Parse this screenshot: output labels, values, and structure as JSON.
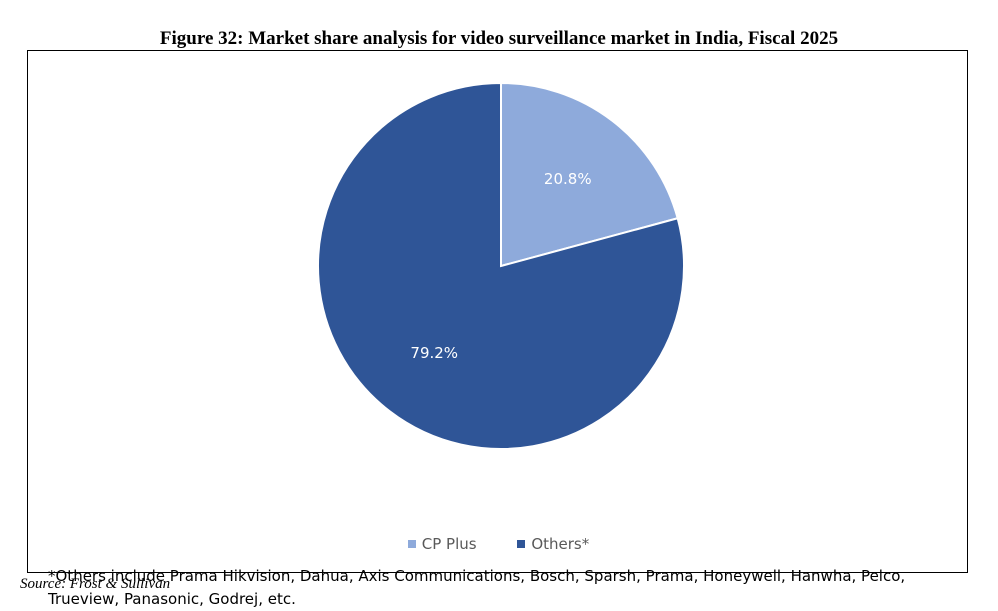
{
  "figure": {
    "title": "Figure 32: Market share analysis for video surveillance market in India, Fiscal 2025",
    "footnote_line1": "*Others include Prama Hikvision, Dahua, Axis Communications, Bosch, Sparsh, Prama, Honeywell, Hanwha, Pelco,",
    "footnote_line2": "Trueview, Panasonic, Godrej, etc.",
    "source": "Source: Frost & Sullivan"
  },
  "chart_data": {
    "type": "pie",
    "title": "",
    "slices": [
      {
        "name": "CP Plus",
        "value": 20.8,
        "label": "20.8%",
        "color": "#8eaadb"
      },
      {
        "name": "Others*",
        "value": 79.2,
        "label": "79.2%",
        "color": "#2f5597"
      }
    ],
    "start_angle": "12 o'clock, clockwise",
    "legend_position": "bottom"
  }
}
